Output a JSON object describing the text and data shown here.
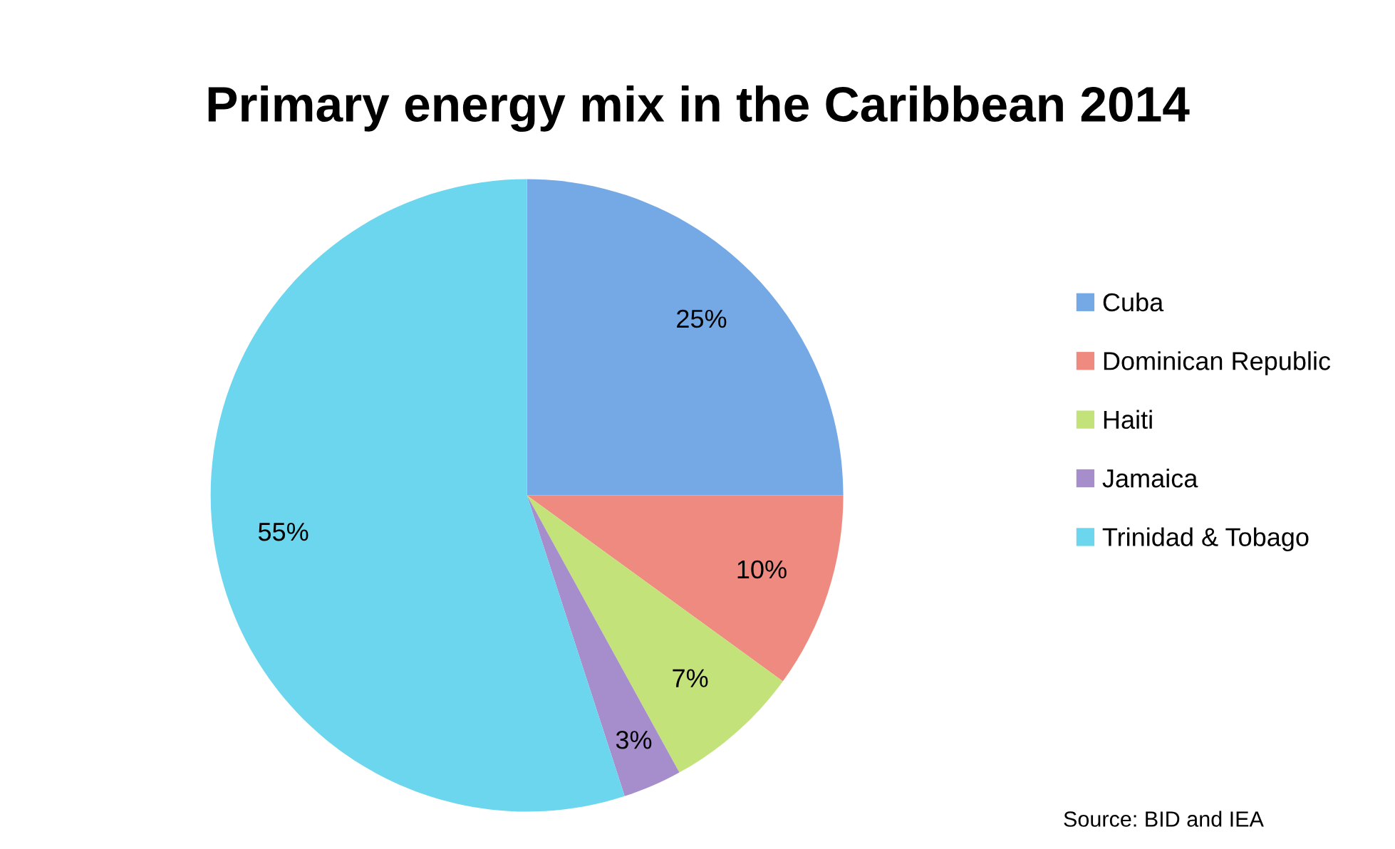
{
  "chart_data": {
    "type": "pie",
    "title": "Primary energy mix in the Caribbean 2014",
    "categories": [
      "Cuba",
      "Dominican Republic",
      "Haiti",
      "Jamaica",
      "Trinidad & Tobago"
    ],
    "values": [
      25,
      10,
      7,
      3,
      55
    ],
    "colors": [
      "#74a9e6",
      "#ef8a80",
      "#c3e27a",
      "#a68dcb",
      "#6cd6ee"
    ],
    "value_labels": [
      "25%",
      "10%",
      "7%",
      "3%",
      "55%"
    ],
    "legend": "right",
    "annotations": [
      "Source: BID and IEA"
    ]
  }
}
